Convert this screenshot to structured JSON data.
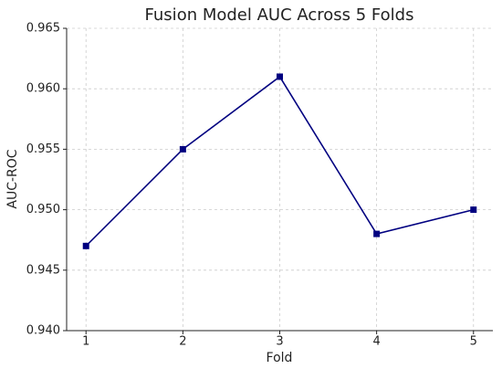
{
  "chart_data": {
    "type": "line",
    "title": "Fusion Model AUC Across 5 Folds",
    "x_label": "Fold",
    "y_label": "AUC-ROC",
    "x": [
      1,
      2,
      3,
      4,
      5
    ],
    "series": [
      {
        "name": "AUC",
        "color": "#000080",
        "values": [
          0.947,
          0.955,
          0.961,
          0.948,
          0.95
        ]
      }
    ],
    "xlim": [
      0.8,
      5.2
    ],
    "xticks": [
      1,
      2,
      3,
      4,
      5
    ],
    "ylim": [
      0.94,
      0.965
    ],
    "yticks": [
      {
        "value": 0.94,
        "label": "0.940"
      },
      0.945,
      {
        "value": 0.95,
        "label": "0.950"
      },
      0.955,
      {
        "value": 0.96,
        "label": "0.960"
      },
      0.965
    ],
    "grid": true,
    "marker": "square"
  }
}
